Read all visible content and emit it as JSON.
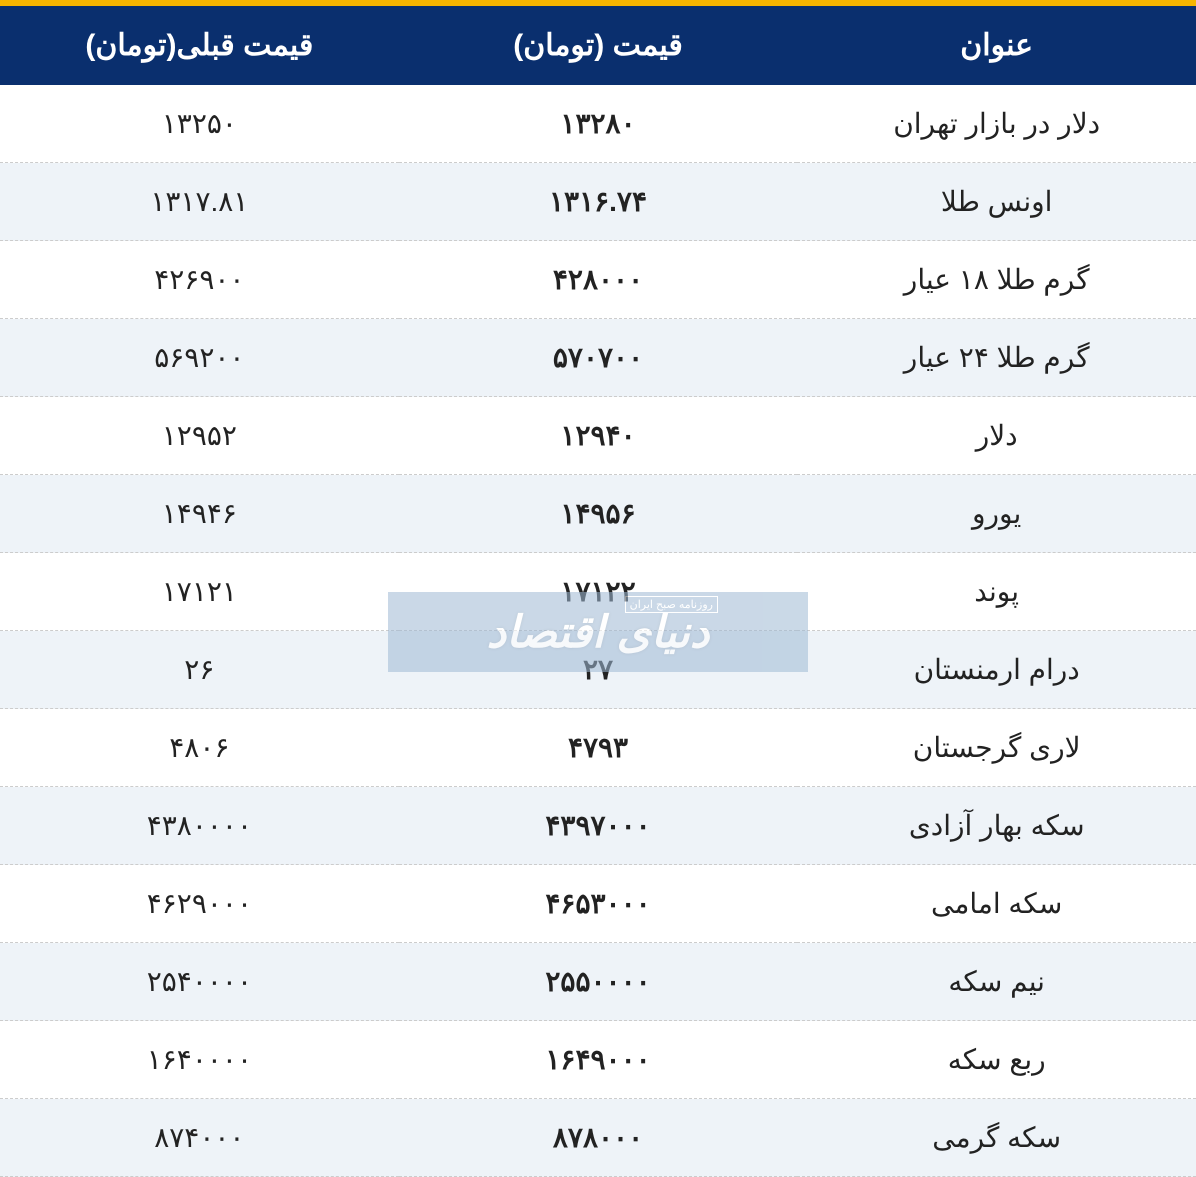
{
  "colors": {
    "topbar": "#f7b500",
    "header_bg": "#0a2f6e",
    "header_text": "#ffffff",
    "row_even_bg": "#ffffff",
    "row_odd_bg": "#eef3f8",
    "border": "#cccccc",
    "watermark_bg": "#9fb9d4",
    "watermark_text": "#ffffff"
  },
  "table": {
    "columns": [
      {
        "key": "title",
        "label": "عنوان"
      },
      {
        "key": "price",
        "label": "قیمت (تومان)"
      },
      {
        "key": "prev",
        "label": "قیمت قبلی(تومان)"
      }
    ],
    "rows": [
      {
        "title": "دلار در بازار تهران",
        "price": "۱۳۲۸۰",
        "prev": "۱۳۲۵۰"
      },
      {
        "title": "اونس طلا",
        "price": "۱۳۱۶.۷۴",
        "prev": "۱۳۱۷.۸۱"
      },
      {
        "title": "گرم طلا ۱۸ عیار",
        "price": "۴۲۸۰۰۰",
        "prev": "۴۲۶۹۰۰"
      },
      {
        "title": "گرم طلا ۲۴ عیار",
        "price": "۵۷۰۷۰۰",
        "prev": "۵۶۹۲۰۰"
      },
      {
        "title": "دلار",
        "price": "۱۲۹۴۰",
        "prev": "۱۲۹۵۲"
      },
      {
        "title": "یورو",
        "price": "۱۴۹۵۶",
        "prev": "۱۴۹۴۶"
      },
      {
        "title": "پوند",
        "price": "۱۷۱۲۲",
        "prev": "۱۷۱۲۱"
      },
      {
        "title": "درام ارمنستان",
        "price": "۲۷",
        "prev": "۲۶"
      },
      {
        "title": "لاری گرجستان",
        "price": "۴۷۹۳",
        "prev": "۴۸۰۶"
      },
      {
        "title": "سکه بهار آزادی",
        "price": "۴۳۹۷۰۰۰",
        "prev": "۴۳۸۰۰۰۰"
      },
      {
        "title": "سکه امامی",
        "price": "۴۶۵۳۰۰۰",
        "prev": "۴۶۲۹۰۰۰"
      },
      {
        "title": "نیم سکه",
        "price": "۲۵۵۰۰۰۰",
        "prev": "۲۵۴۰۰۰۰"
      },
      {
        "title": "ربع سکه",
        "price": "۱۶۴۹۰۰۰",
        "prev": "۱۶۴۰۰۰۰"
      },
      {
        "title": "سکه گرمی",
        "price": "۸۷۸۰۰۰",
        "prev": "۸۷۴۰۰۰"
      }
    ]
  },
  "watermark": {
    "main": "دنیای اقتصاد",
    "sub": "روزنامه صبح ایران"
  }
}
